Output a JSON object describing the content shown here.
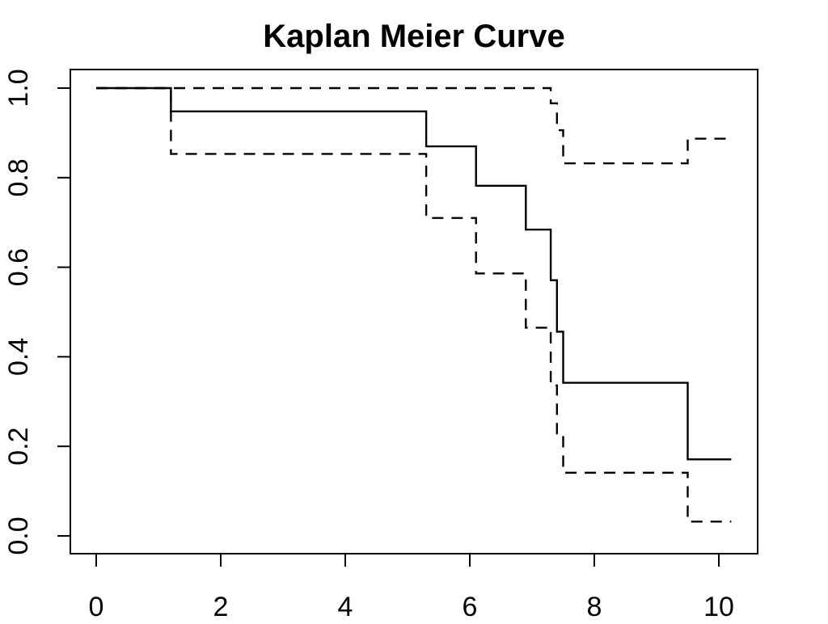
{
  "chart_data": {
    "type": "line",
    "title": "Kaplan Meier Curve",
    "xlabel": "",
    "ylabel": "",
    "xlim": [
      0,
      10.2
    ],
    "ylim": [
      0,
      1
    ],
    "x_ticks": [
      0,
      2,
      4,
      6,
      8,
      10
    ],
    "y_ticks": [
      0.0,
      0.2,
      0.4,
      0.6,
      0.8,
      1.0
    ],
    "y_tick_labels": [
      "0.0",
      "0.2",
      "0.4",
      "0.6",
      "0.8",
      "1.0"
    ],
    "grid": false,
    "legend": "none",
    "series": [
      {
        "style": "solid",
        "x": [
          0,
          1.2,
          5.3,
          6.1,
          6.9,
          7.3,
          7.4,
          7.5,
          9.5,
          10.2
        ],
        "y": [
          1.0,
          0.948,
          0.87,
          0.782,
          0.684,
          0.571,
          0.456,
          0.342,
          0.171,
          0.171
        ]
      },
      {
        "style": "dashed",
        "x": [
          0,
          1.2,
          5.3,
          6.1,
          6.9,
          7.3,
          7.4,
          7.5,
          9.5,
          10.2
        ],
        "y": [
          1.0,
          0.853,
          0.71,
          0.586,
          0.465,
          0.336,
          0.229,
          0.141,
          0.032,
          0.032
        ]
      },
      {
        "style": "dashed",
        "x": [
          0,
          1.2,
          5.3,
          6.1,
          6.9,
          7.3,
          7.4,
          7.5,
          9.5,
          10.2
        ],
        "y": [
          1.0,
          1.0,
          1.0,
          1.0,
          1.0,
          0.966,
          0.906,
          0.832,
          0.887,
          0.887
        ]
      }
    ]
  }
}
